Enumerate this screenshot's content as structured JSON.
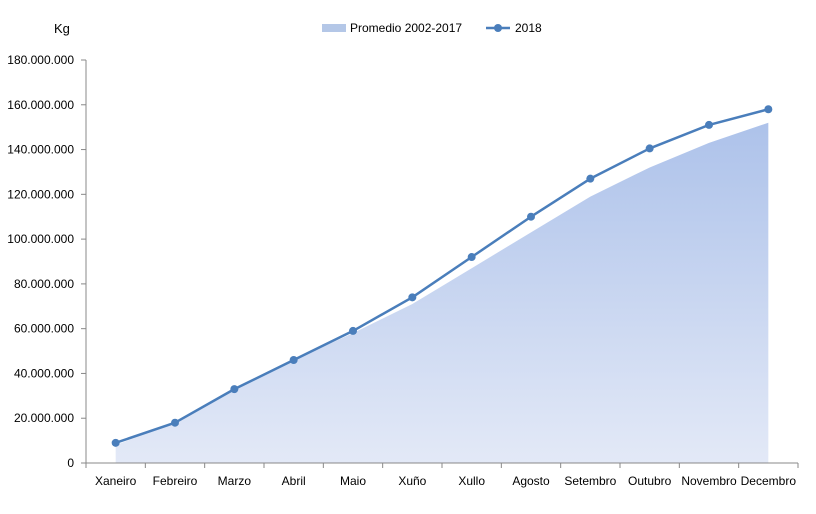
{
  "chart_data": {
    "type": "area",
    "ylabel": "Kg",
    "ylim": [
      0,
      180000000
    ],
    "yticks": [
      0,
      20000000,
      40000000,
      60000000,
      80000000,
      100000000,
      120000000,
      140000000,
      160000000,
      180000000
    ],
    "ytick_labels": [
      "0",
      "20.000.000",
      "40.000.000",
      "60.000.000",
      "80.000.000",
      "100.000.000",
      "120.000.000",
      "140.000.000",
      "160.000.000",
      "180.000.000"
    ],
    "categories": [
      "Xaneiro",
      "Febreiro",
      "Marzo",
      "Abril",
      "Maio",
      "Xuño",
      "Xullo",
      "Agosto",
      "Setembro",
      "Outubro",
      "Novembro",
      "Decembro"
    ],
    "legend_position": "top",
    "series": [
      {
        "name": "Promedio 2002-2017",
        "kind": "area",
        "color": "#b4c7e7",
        "values": [
          8000000,
          18000000,
          33000000,
          46000000,
          58000000,
          71000000,
          87000000,
          103000000,
          119000000,
          132000000,
          143000000,
          152000000
        ]
      },
      {
        "name": "2018",
        "kind": "line",
        "color": "#4a7ebb",
        "values": [
          9000000,
          18000000,
          33000000,
          46000000,
          59000000,
          74000000,
          92000000,
          110000000,
          127000000,
          140500000,
          151000000,
          158000000
        ]
      }
    ]
  }
}
